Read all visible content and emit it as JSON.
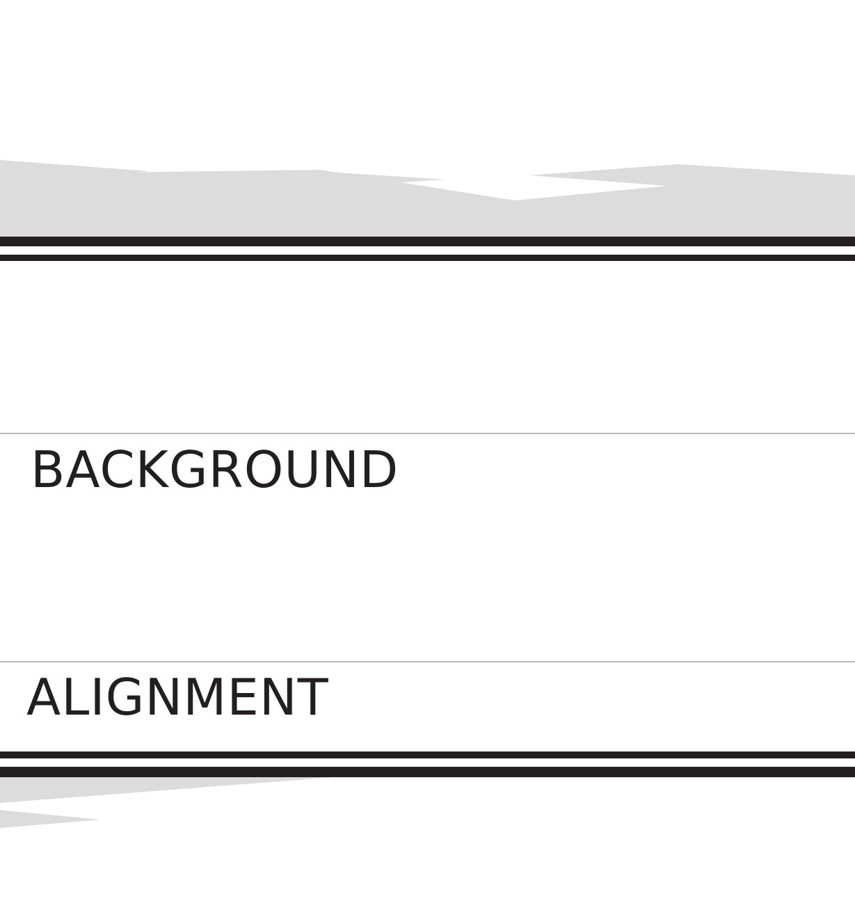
{
  "sections": [
    {
      "heading": "BACKGROUND"
    },
    {
      "heading": "ALIGNMENT"
    }
  ],
  "colors": {
    "text": "#231f20",
    "bands": "#231f20",
    "shards": "#dcdcdc",
    "rules": "#b9b9b9",
    "background": "#ffffff"
  }
}
